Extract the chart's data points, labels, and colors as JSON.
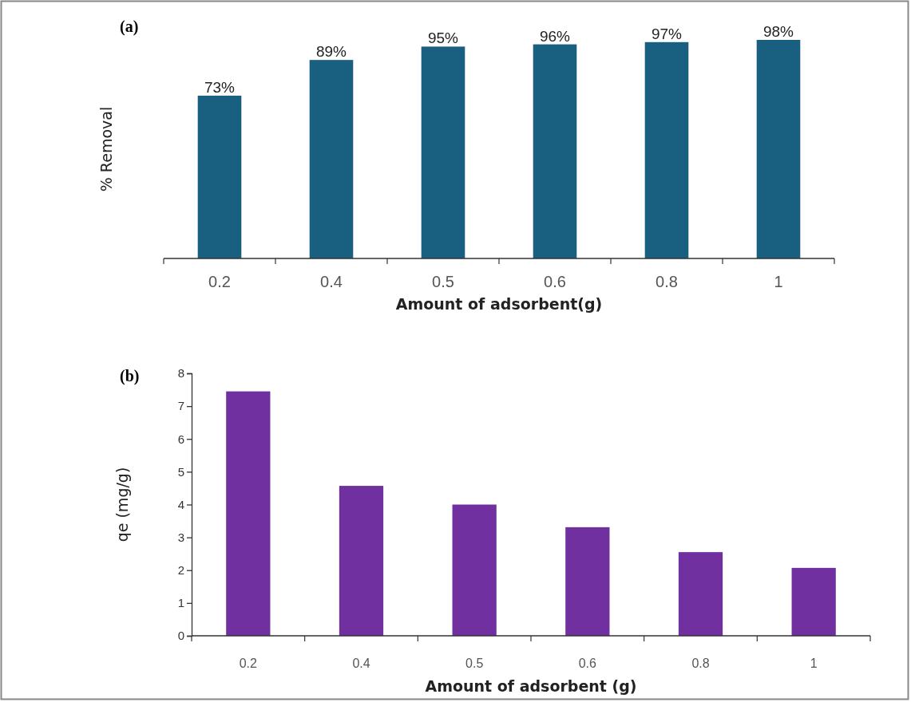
{
  "chart_data": [
    {
      "type": "bar",
      "title": "(a)",
      "xlabel": "Amount of  adsorbent(g)",
      "ylabel": "% Removal",
      "categories": [
        "0.2",
        "0.4",
        "0.5",
        "0.6",
        "0.8",
        "1"
      ],
      "values": [
        73,
        89,
        95,
        96,
        97,
        98
      ],
      "color": "#195f80",
      "value_labels": [
        "73%",
        "89%",
        "95%",
        "96%",
        "97%",
        "98%"
      ],
      "tick_labels": "x"
    },
    {
      "type": "bar",
      "title": "(b)",
      "xlabel": "Amount of  adsorbent (g)",
      "ylabel": "qe (mg/g)",
      "categories": [
        "0.2",
        "0.4",
        "0.5",
        "0.6",
        "0.8",
        "1"
      ],
      "values": [
        7.45,
        4.57,
        4.0,
        3.31,
        2.55,
        2.07
      ],
      "color": "#7030a0",
      "ylim": [
        0,
        8
      ],
      "yticks": [
        0,
        1,
        2,
        3,
        4,
        5,
        6,
        7,
        8
      ]
    }
  ]
}
